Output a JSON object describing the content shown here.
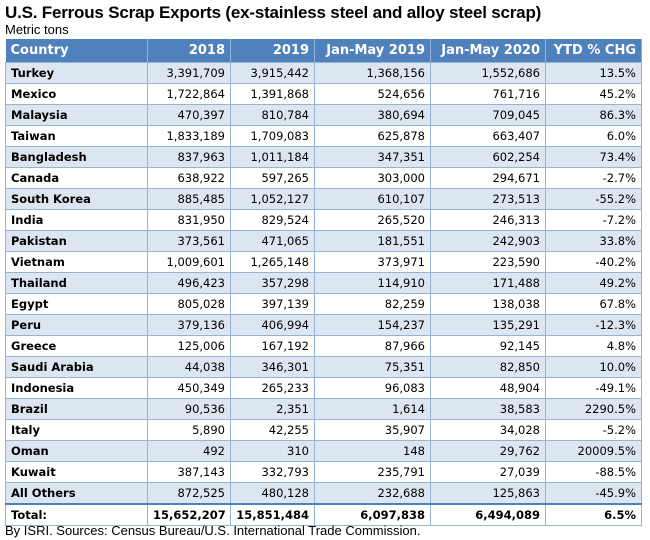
{
  "title": "U.S. Ferrous Scrap Exports (ex-stainless steel and alloy steel scrap)",
  "subtitle": "Metric tons",
  "columns": [
    "Country",
    "2018",
    "2019",
    "Jan-May 2019",
    "Jan-May 2020",
    "YTD % CHG"
  ],
  "rows": [
    [
      "Turkey",
      "3,391,709",
      "3,915,442",
      "1,368,156",
      "1,552,686",
      "13.5%"
    ],
    [
      "Mexico",
      "1,722,864",
      "1,391,868",
      "524,656",
      "761,716",
      "45.2%"
    ],
    [
      "Malaysia",
      "470,397",
      "810,784",
      "380,694",
      "709,045",
      "86.3%"
    ],
    [
      "Taiwan",
      "1,833,189",
      "1,709,083",
      "625,878",
      "663,407",
      "6.0%"
    ],
    [
      "Bangladesh",
      "837,963",
      "1,011,184",
      "347,351",
      "602,254",
      "73.4%"
    ],
    [
      "Canada",
      "638,922",
      "597,265",
      "303,000",
      "294,671",
      "-2.7%"
    ],
    [
      "South Korea",
      "885,485",
      "1,052,127",
      "610,107",
      "273,513",
      "-55.2%"
    ],
    [
      "India",
      "831,950",
      "829,524",
      "265,520",
      "246,313",
      "-7.2%"
    ],
    [
      "Pakistan",
      "373,561",
      "471,065",
      "181,551",
      "242,903",
      "33.8%"
    ],
    [
      "Vietnam",
      "1,009,601",
      "1,265,148",
      "373,971",
      "223,590",
      "-40.2%"
    ],
    [
      "Thailand",
      "496,423",
      "357,298",
      "114,910",
      "171,488",
      "49.2%"
    ],
    [
      "Egypt",
      "805,028",
      "397,139",
      "82,259",
      "138,038",
      "67.8%"
    ],
    [
      "Peru",
      "379,136",
      "406,994",
      "154,237",
      "135,291",
      "-12.3%"
    ],
    [
      "Greece",
      "125,006",
      "167,192",
      "87,966",
      "92,145",
      "4.8%"
    ],
    [
      "Saudi Arabia",
      "44,038",
      "346,301",
      "75,351",
      "82,850",
      "10.0%"
    ],
    [
      "Indonesia",
      "450,349",
      "265,233",
      "96,083",
      "48,904",
      "-49.1%"
    ],
    [
      "Brazil",
      "90,536",
      "2,351",
      "1,614",
      "38,583",
      "2290.5%"
    ],
    [
      "Italy",
      "5,890",
      "42,255",
      "35,907",
      "34,028",
      "-5.2%"
    ],
    [
      "Oman",
      "492",
      "310",
      "148",
      "29,762",
      "20009.5%"
    ],
    [
      "Kuwait",
      "387,143",
      "332,793",
      "235,791",
      "27,039",
      "-88.5%"
    ],
    [
      "All Others",
      "872,525",
      "480,128",
      "232,688",
      "125,863",
      "-45.9%"
    ]
  ],
  "total": [
    "Total:",
    "15,652,207",
    "15,851,484",
    "6,097,838",
    "6,494,089",
    "6.5%"
  ],
  "footer": "By ISRI. Sources: Census Bureau/U.S. International Trade Commission."
}
